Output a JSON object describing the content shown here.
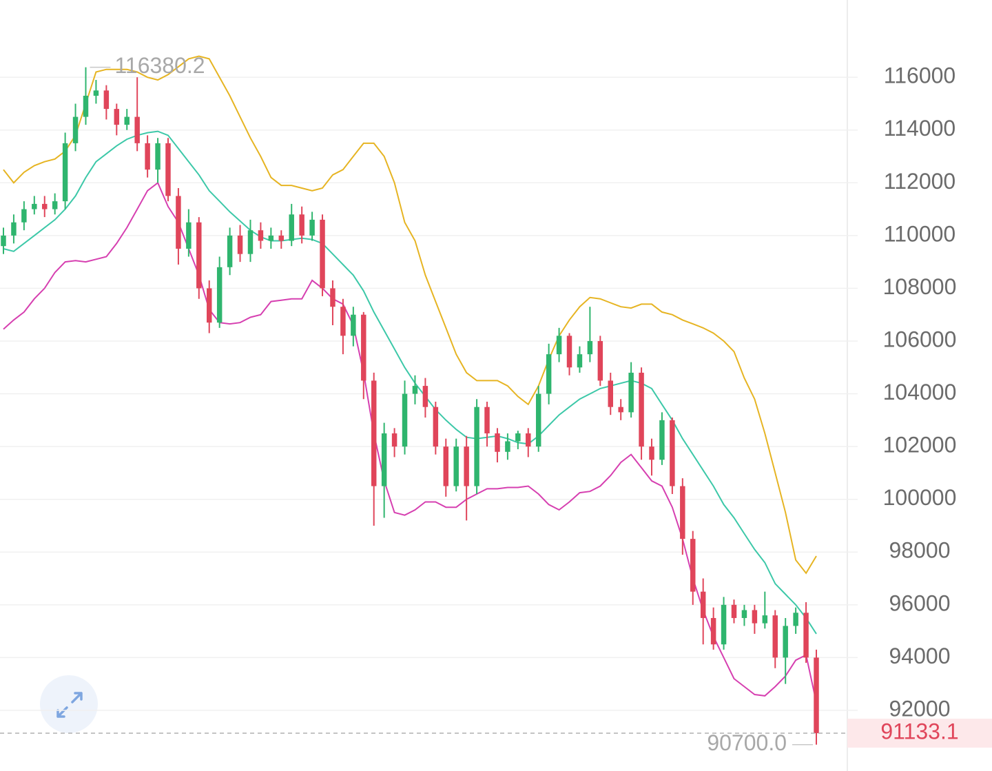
{
  "chart_data": {
    "type": "candlestick",
    "ylim": [
      89700,
      118930
    ],
    "yticks": [
      92000,
      94000,
      96000,
      98000,
      100000,
      102000,
      104000,
      106000,
      108000,
      110000,
      112000,
      114000,
      116000
    ],
    "grid": true,
    "up_color": "#2fb56e",
    "down_color": "#e0455a",
    "open": [
      109600,
      110000,
      110500,
      111000,
      111200,
      111000,
      111300,
      113500,
      114500,
      115300,
      115500,
      114800,
      114200,
      114500,
      113500,
      112500,
      113500,
      111500,
      109500,
      110500,
      108000,
      106700,
      108800,
      110000,
      109300,
      110200,
      109800,
      110000,
      109800,
      110800,
      110000,
      110600,
      108000,
      107300,
      106200,
      107000,
      104500,
      100500,
      102500,
      102000,
      104000,
      104300,
      103500,
      102000,
      100500,
      102000,
      100500,
      103500,
      102500,
      101800,
      102200,
      102500,
      102000,
      104000,
      105500,
      106200,
      105000,
      105500,
      106000,
      104500,
      103500,
      103300,
      104800,
      102000,
      101500,
      103000,
      100500,
      98500,
      96500,
      95500,
      94500,
      96000,
      95500,
      95800,
      95300,
      95600,
      94000,
      95200,
      95700,
      94000
    ],
    "high": [
      110300,
      110800,
      111300,
      111500,
      111500,
      111600,
      113900,
      115000,
      116380.2,
      115900,
      115700,
      115000,
      114800,
      116000,
      113800,
      113700,
      113700,
      111800,
      111000,
      110700,
      108300,
      109200,
      110300,
      110400,
      110600,
      110500,
      110300,
      110200,
      111200,
      111100,
      110900,
      110800,
      108300,
      107600,
      107300,
      107100,
      104800,
      102900,
      102700,
      104500,
      104700,
      104600,
      103700,
      102300,
      102300,
      102400,
      103800,
      103700,
      102700,
      102500,
      102600,
      102700,
      104300,
      105900,
      106500,
      106300,
      105800,
      107300,
      106200,
      104800,
      103800,
      105200,
      105000,
      102300,
      103300,
      103100,
      100800,
      98800,
      97000,
      95900,
      96300,
      96200,
      96000,
      96000,
      96500,
      95800,
      95500,
      95900,
      96100,
      94300
    ],
    "low": [
      109300,
      109700,
      110200,
      110800,
      110700,
      110800,
      111000,
      113200,
      114200,
      115000,
      114400,
      113800,
      114000,
      113200,
      112200,
      112000,
      111300,
      108900,
      109200,
      107600,
      106300,
      106500,
      108500,
      109000,
      109000,
      109500,
      109500,
      109500,
      109600,
      109700,
      109800,
      107700,
      106600,
      105500,
      105800,
      103800,
      99000,
      99300,
      101600,
      101700,
      103600,
      103100,
      101700,
      100100,
      100300,
      99200,
      100200,
      102000,
      101400,
      101500,
      101900,
      101600,
      101800,
      103600,
      105200,
      104700,
      104800,
      105200,
      104300,
      103200,
      103000,
      103100,
      101500,
      100900,
      101300,
      100200,
      97900,
      96000,
      94500,
      94300,
      94300,
      95300,
      95200,
      94900,
      95100,
      93600,
      93000,
      94900,
      93800,
      90700
    ],
    "close": [
      110000,
      110500,
      111000,
      111200,
      111000,
      111300,
      113500,
      114500,
      115300,
      115500,
      114800,
      114200,
      114500,
      113500,
      112500,
      113500,
      111500,
      109500,
      110500,
      108000,
      106700,
      108800,
      110000,
      109300,
      110200,
      109800,
      110000,
      109800,
      110800,
      110000,
      110600,
      108000,
      107300,
      106200,
      107000,
      104500,
      100500,
      102500,
      102000,
      104000,
      104300,
      103500,
      102000,
      100500,
      102000,
      100500,
      103500,
      102500,
      101800,
      102200,
      102500,
      102000,
      104000,
      105500,
      106200,
      105000,
      105500,
      106000,
      104500,
      103500,
      103300,
      104800,
      102000,
      101500,
      103000,
      100500,
      98500,
      96500,
      95500,
      94500,
      96000,
      95500,
      95800,
      95300,
      95600,
      94000,
      95200,
      95700,
      94000,
      91133.1
    ],
    "bands": [
      {
        "color": "#e6b422",
        "values": [
          112500,
          112000,
          112400,
          112650,
          112800,
          112900,
          113200,
          113800,
          115000,
          116200,
          116300,
          116300,
          116300,
          116200,
          116000,
          115900,
          116100,
          116400,
          116700,
          116800,
          116700,
          116000,
          115300,
          114500,
          113700,
          113000,
          112200,
          111900,
          111900,
          111800,
          111700,
          111800,
          112300,
          112500,
          113000,
          113500,
          113500,
          113000,
          112000,
          110500,
          109800,
          108500,
          107500,
          106500,
          105500,
          104800,
          104500,
          104500,
          104500,
          104300,
          103900,
          103600,
          104300,
          105300,
          106200,
          106800,
          107300,
          107650,
          107600,
          107450,
          107300,
          107250,
          107400,
          107400,
          107100,
          107000,
          106800,
          106650,
          106500,
          106300,
          106000,
          105600,
          104600,
          103800,
          102500,
          101000,
          99500,
          97700,
          97200,
          97850
        ]
      },
      {
        "color": "#3cc8a8",
        "values": [
          109500,
          109400,
          109700,
          110000,
          110300,
          110600,
          111000,
          111500,
          112200,
          112800,
          113100,
          113400,
          113650,
          113800,
          113900,
          113950,
          113800,
          113300,
          112800,
          112300,
          111700,
          111300,
          110900,
          110550,
          110200,
          109950,
          109800,
          109800,
          109850,
          109900,
          109850,
          109700,
          109300,
          108900,
          108500,
          107900,
          107100,
          106400,
          105700,
          105000,
          104400,
          103900,
          103400,
          103000,
          102650,
          102350,
          102300,
          102350,
          102400,
          102300,
          102150,
          102100,
          102400,
          102800,
          103200,
          103500,
          103800,
          104000,
          104200,
          104300,
          104400,
          104500,
          104400,
          104200,
          103600,
          103000,
          102300,
          101700,
          101100,
          100500,
          99800,
          99300,
          98700,
          98100,
          97600,
          96800,
          96400,
          96000,
          95500,
          94900
        ]
      },
      {
        "color": "#d63fb0",
        "values": [
          106450,
          106800,
          107100,
          107600,
          108000,
          108600,
          109000,
          109050,
          109000,
          109100,
          109200,
          109700,
          110300,
          111000,
          111700,
          112000,
          111100,
          110500,
          109500,
          108500,
          107200,
          106700,
          106650,
          106700,
          106900,
          107000,
          107500,
          107550,
          107600,
          107600,
          108300,
          108000,
          107600,
          107400,
          106600,
          104800,
          102500,
          100700,
          99500,
          99400,
          99600,
          99900,
          99900,
          99700,
          99700,
          100000,
          100200,
          100400,
          100400,
          100450,
          100450,
          100500,
          100200,
          99800,
          99600,
          99900,
          100250,
          100300,
          100500,
          100900,
          101400,
          101700,
          101200,
          100700,
          100500,
          99700,
          98500,
          97000,
          95800,
          94800,
          94000,
          93200,
          92900,
          92600,
          92550,
          92900,
          93300,
          93900,
          94100,
          92300
        ]
      }
    ],
    "max_label": {
      "value": 116380.2,
      "label": "116380.2"
    },
    "min_label": {
      "value": 90700,
      "label": "90700.0"
    },
    "last_price": {
      "value": 91133.1,
      "label": "91133.1",
      "color": "#e0455a"
    }
  }
}
